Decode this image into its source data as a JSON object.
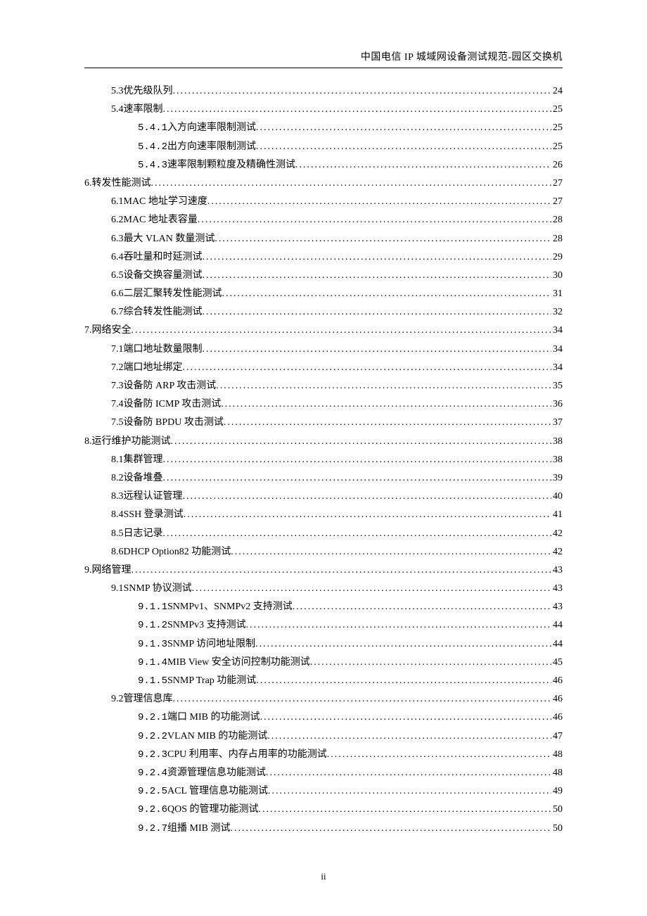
{
  "header": "中国电信 IP 城域网设备测试规范-园区交换机",
  "footer": "ii",
  "toc": [
    {
      "level": 2,
      "num": "5.3",
      "title": " 优先级队列",
      "page": "24"
    },
    {
      "level": 2,
      "num": "5.4",
      "title": " 速率限制",
      "page": "25"
    },
    {
      "level": 3,
      "num": "5.4.1",
      "title": " 入方向速率限制测试",
      "page": "25",
      "mono": true
    },
    {
      "level": 3,
      "num": "5.4.2",
      "title": " 出方向速率限制测试",
      "page": "25",
      "mono": true
    },
    {
      "level": 3,
      "num": "5.4.3",
      "title": " 速率限制颗粒度及精确性测试",
      "page": "26",
      "mono": true
    },
    {
      "level": 1,
      "num": "6.",
      "title": " 转发性能测试 ",
      "page": "27"
    },
    {
      "level": 2,
      "num": "6.1",
      "title": " MAC 地址学习速度 ",
      "page": "27"
    },
    {
      "level": 2,
      "num": "6.2",
      "title": " MAC 地址表容量 ",
      "page": "28"
    },
    {
      "level": 2,
      "num": "6.3",
      "title": " 最大 VLAN 数量测试 ",
      "page": "28"
    },
    {
      "level": 2,
      "num": "6.4",
      "title": " 吞吐量和时延测试",
      "page": "29"
    },
    {
      "level": 2,
      "num": "6.5",
      "title": " 设备交换容量测试",
      "page": "30"
    },
    {
      "level": 2,
      "num": "6.6",
      "title": " 二层汇聚转发性能测试",
      "page": "31"
    },
    {
      "level": 2,
      "num": "6.7",
      "title": " 综合转发性能测试",
      "page": "32"
    },
    {
      "level": 1,
      "num": "7.",
      "title": " 网络安全 ",
      "page": "34"
    },
    {
      "level": 2,
      "num": "7.1",
      "title": " 端口地址数量限制",
      "page": "34"
    },
    {
      "level": 2,
      "num": "7.2",
      "title": " 端口地址绑定",
      "page": "34"
    },
    {
      "level": 2,
      "num": "7.3",
      "title": " 设备防 ARP 攻击测试",
      "page": "35"
    },
    {
      "level": 2,
      "num": "7.4",
      "title": " 设备防 ICMP 攻击测试",
      "page": "36"
    },
    {
      "level": 2,
      "num": "7.5",
      "title": " 设备防 BPDU 攻击测试",
      "page": "37"
    },
    {
      "level": 1,
      "num": "8.",
      "title": " 运行维护功能测试 ",
      "page": "38"
    },
    {
      "level": 2,
      "num": "8.1",
      "title": " 集群管理",
      "page": "38"
    },
    {
      "level": 2,
      "num": "8.2",
      "title": " 设备堆叠",
      "page": "39"
    },
    {
      "level": 2,
      "num": "8.3",
      "title": " 远程认证管理",
      "page": "40"
    },
    {
      "level": 2,
      "num": "8.4",
      "title": " SSH 登录测试 ",
      "page": "41"
    },
    {
      "level": 2,
      "num": "8.5",
      "title": " 日志记录",
      "page": "42"
    },
    {
      "level": 2,
      "num": "8.6",
      "title": " DHCP Option82 功能测试",
      "page": "42"
    },
    {
      "level": 1,
      "num": "9.",
      "title": " 网络管理 ",
      "page": "43"
    },
    {
      "level": 2,
      "num": "9.1",
      "title": " SNMP 协议测试",
      "page": "43"
    },
    {
      "level": 3,
      "num": "9.1.1",
      "title": " SNMPv1、SNMPv2 支持测试",
      "page": "43",
      "mono": true
    },
    {
      "level": 3,
      "num": "9.1.2",
      "title": " SNMPv3 支持测试",
      "page": "44",
      "mono": true
    },
    {
      "level": 3,
      "num": "9.1.3",
      "title": " SNMP 访问地址限制",
      "page": "44",
      "mono": true
    },
    {
      "level": 3,
      "num": "9.1.4",
      "title": " MIB View 安全访问控制功能测试",
      "page": "45",
      "mono": true
    },
    {
      "level": 3,
      "num": "9.1.5",
      "title": " SNMP Trap 功能测试",
      "page": "46",
      "mono": true
    },
    {
      "level": 2,
      "num": "9.2",
      "title": " 管理信息库",
      "page": "46"
    },
    {
      "level": 3,
      "num": "9.2.1",
      "title": " 端口 MIB 的功能测试",
      "page": "46",
      "mono": true
    },
    {
      "level": 3,
      "num": "9.2.2",
      "title": " VLAN MIB 的功能测试",
      "page": "47",
      "mono": true
    },
    {
      "level": 3,
      "num": "9.2.3",
      "title": " CPU 利用率、内存占用率的功能测试",
      "page": "48",
      "mono": true
    },
    {
      "level": 3,
      "num": "9.2.4",
      "title": " 资源管理信息功能测试",
      "page": "48",
      "mono": true
    },
    {
      "level": 3,
      "num": "9.2.5",
      "title": " ACL 管理信息功能测试",
      "page": "49",
      "mono": true
    },
    {
      "level": 3,
      "num": "9.2.6",
      "title": " QOS 的管理功能测试",
      "page": "50",
      "mono": true
    },
    {
      "level": 3,
      "num": "9.2.7",
      "title": " 组播 MIB 测试",
      "page": "50",
      "mono": true
    }
  ]
}
